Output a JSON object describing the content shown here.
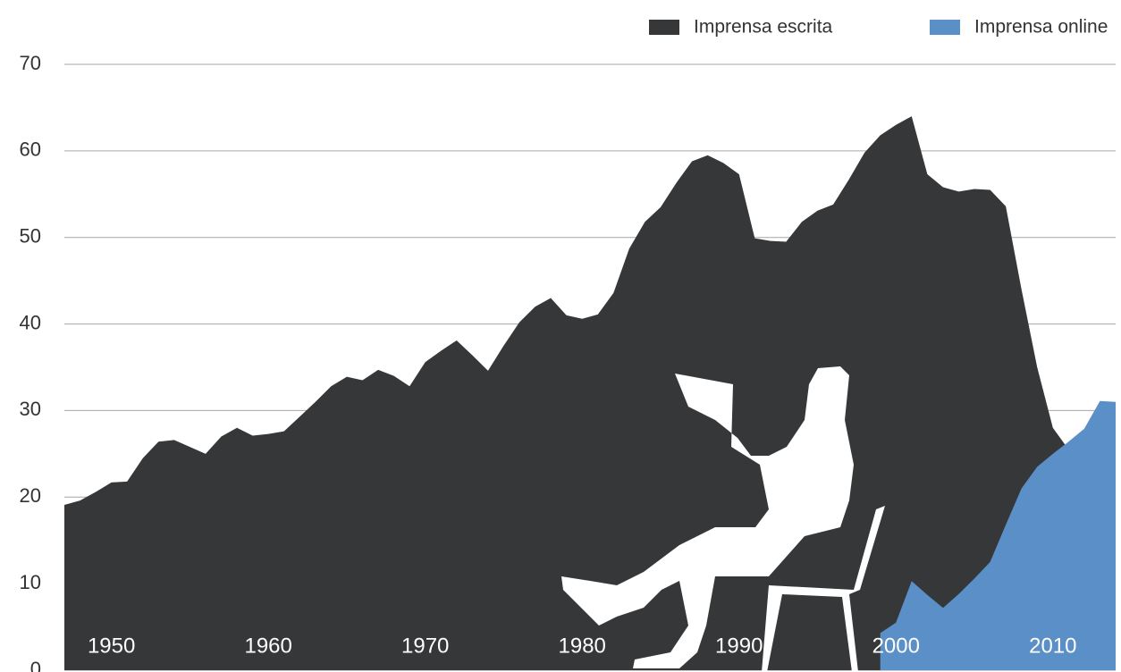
{
  "chart_data": {
    "type": "area",
    "x": [
      1947,
      1948,
      1949,
      1950,
      1951,
      1952,
      1953,
      1954,
      1955,
      1956,
      1957,
      1958,
      1959,
      1960,
      1961,
      1962,
      1963,
      1964,
      1965,
      1966,
      1967,
      1968,
      1969,
      1970,
      1971,
      1972,
      1973,
      1974,
      1975,
      1976,
      1977,
      1978,
      1979,
      1980,
      1981,
      1982,
      1983,
      1984,
      1985,
      1986,
      1987,
      1988,
      1989,
      1990,
      1991,
      1992,
      1993,
      1994,
      1995,
      1996,
      1997,
      1998,
      1999,
      2000,
      2001,
      2002,
      2003,
      2004,
      2005,
      2006,
      2007,
      2008,
      2009,
      2010,
      2011,
      2012,
      2013,
      2014
    ],
    "series": [
      {
        "name": "Imprensa escrita",
        "color": "#363739",
        "values": [
          19.1,
          19.6,
          20.6,
          21.7,
          21.8,
          24.5,
          26.4,
          26.6,
          25.8,
          25.0,
          27.0,
          28.0,
          27.1,
          27.3,
          27.6,
          29.3,
          31.0,
          32.8,
          33.9,
          33.5,
          34.7,
          34.0,
          32.8,
          35.6,
          36.9,
          38.1,
          36.4,
          34.6,
          37.5,
          40.2,
          42.0,
          43.0,
          41.0,
          40.6,
          41.1,
          43.6,
          48.7,
          51.8,
          53.5,
          56.3,
          58.8,
          59.5,
          58.6,
          57.3,
          49.9,
          49.6,
          49.5,
          51.8,
          53.1,
          53.8,
          56.7,
          59.8,
          61.8,
          63.0,
          64.0,
          57.3,
          55.8,
          55.3,
          55.6,
          55.5,
          53.6,
          44.0,
          35.0,
          28.0,
          25.5,
          24.0,
          23.0,
          22.0
        ]
      },
      {
        "name": "Imprensa online",
        "color": "#5b8fc7",
        "values": [
          null,
          null,
          null,
          null,
          null,
          null,
          null,
          null,
          null,
          null,
          null,
          null,
          null,
          null,
          null,
          null,
          null,
          null,
          null,
          null,
          null,
          null,
          null,
          null,
          null,
          null,
          null,
          null,
          null,
          null,
          null,
          null,
          null,
          null,
          null,
          null,
          null,
          null,
          null,
          null,
          null,
          null,
          null,
          null,
          null,
          null,
          null,
          null,
          null,
          null,
          null,
          null,
          4.3,
          5.5,
          10.3,
          8.7,
          7.2,
          8.8,
          10.6,
          12.5,
          16.8,
          21.0,
          23.5,
          25.0,
          26.4,
          27.9,
          31.1,
          31.0
        ]
      }
    ],
    "xlim": [
      1947,
      2014
    ],
    "xticks": [
      1950,
      1960,
      1970,
      1980,
      1990,
      2000,
      2010
    ],
    "ylim": [
      0,
      70
    ],
    "yticks": [
      0,
      10,
      20,
      30,
      40,
      50,
      60,
      70
    ],
    "grid": true,
    "legend": "top-right"
  }
}
